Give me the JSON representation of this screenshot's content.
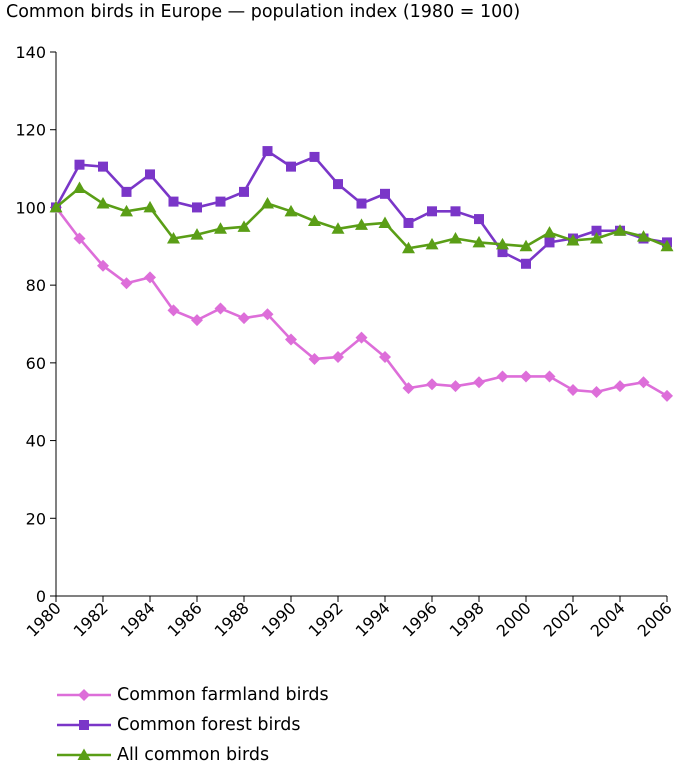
{
  "chart_data": {
    "type": "line",
    "title": "Common birds in Europe — population index (1980 = 100)",
    "xlabel": "",
    "ylabel": "",
    "xlim": [
      1980,
      2006
    ],
    "ylim": [
      0,
      140
    ],
    "y_ticks": [
      0,
      20,
      40,
      60,
      80,
      100,
      120,
      140
    ],
    "x_ticks": [
      1980,
      1982,
      1984,
      1986,
      1988,
      1990,
      1992,
      1994,
      1996,
      1998,
      2000,
      2002,
      2004,
      2006
    ],
    "y_tick_labels": [
      "0",
      "20",
      "40",
      "60",
      "80",
      "100",
      "120",
      "140"
    ],
    "x_tick_labels": [
      "1980",
      "1982",
      "1984",
      "1986",
      "1988",
      "1990",
      "1992",
      "1994",
      "1996",
      "1998",
      "2000",
      "2002",
      "2004",
      "2006"
    ],
    "grid": false,
    "legend_position": "bottom",
    "x": [
      1980,
      1981,
      1982,
      1983,
      1984,
      1985,
      1986,
      1987,
      1988,
      1989,
      1990,
      1991,
      1992,
      1993,
      1994,
      1995,
      1996,
      1997,
      1998,
      1999,
      2000,
      2001,
      2002,
      2003,
      2004,
      2005,
      2006
    ],
    "series": [
      {
        "name": "Common farmland birds",
        "color": "#dd6ed9",
        "marker": "diamond",
        "values": [
          100,
          92,
          85,
          80.5,
          82,
          73.5,
          71,
          74,
          71.5,
          72.5,
          66,
          61,
          61.5,
          66.5,
          61.5,
          53.5,
          54.5,
          54,
          55,
          56.5,
          56.5,
          56.5,
          53,
          52.5,
          54,
          55,
          51.5
        ]
      },
      {
        "name": "Common forest birds",
        "color": "#7a36c8",
        "marker": "square",
        "values": [
          100,
          111,
          110.5,
          104,
          108.5,
          101.5,
          100,
          101.5,
          104,
          114.5,
          110.5,
          113,
          106,
          101,
          103.5,
          96,
          99,
          99,
          97,
          88.5,
          85.5,
          91,
          92,
          94,
          94,
          92,
          91
        ]
      },
      {
        "name": "All common birds",
        "color": "#5a9e16",
        "marker": "triangle",
        "values": [
          100,
          105,
          101,
          99,
          100,
          92,
          93,
          94.5,
          95,
          101,
          99,
          96.5,
          94.5,
          95.5,
          96,
          89.5,
          90.5,
          92,
          91,
          90.5,
          90,
          93.5,
          91.5,
          92,
          94,
          92.5,
          90
        ]
      }
    ]
  }
}
